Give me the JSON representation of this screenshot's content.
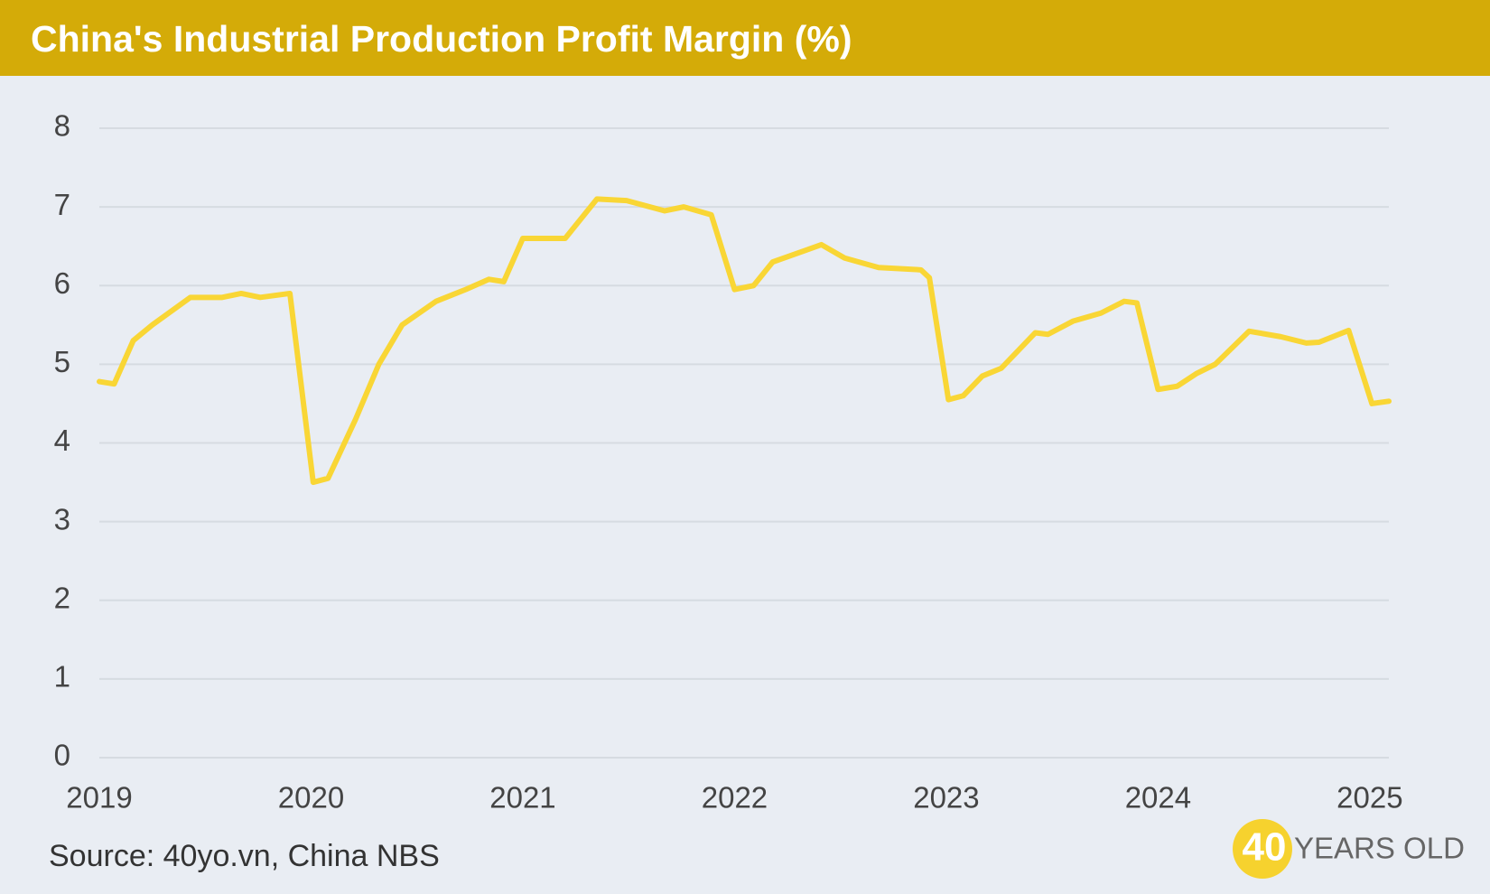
{
  "chart_data": {
    "type": "line",
    "title": "China's Industrial Production Profit Margin (%)",
    "x": [
      2019.0,
      2019.07,
      2019.16,
      2019.25,
      2019.43,
      2019.58,
      2019.67,
      2019.76,
      2019.9,
      2020.01,
      2020.08,
      2020.21,
      2020.32,
      2020.43,
      2020.59,
      2020.73,
      2020.84,
      2020.91,
      2021.0,
      2021.2,
      2021.35,
      2021.49,
      2021.67,
      2021.76,
      2021.89,
      2022.0,
      2022.09,
      2022.18,
      2022.41,
      2022.52,
      2022.68,
      2022.88,
      2022.92,
      2023.01,
      2023.08,
      2023.17,
      2023.26,
      2023.42,
      2023.48,
      2023.6,
      2023.73,
      2023.84,
      2023.9,
      2024.0,
      2024.09,
      2024.18,
      2024.27,
      2024.43,
      2024.58,
      2024.7,
      2024.76,
      2024.9,
      2025.01,
      2025.09
    ],
    "values": [
      4.78,
      4.75,
      5.3,
      5.5,
      5.85,
      5.85,
      5.9,
      5.85,
      5.9,
      3.5,
      3.55,
      4.3,
      5.0,
      5.5,
      5.8,
      5.95,
      6.08,
      6.05,
      6.6,
      6.6,
      7.1,
      7.08,
      6.95,
      7.0,
      6.9,
      5.95,
      6.0,
      6.3,
      6.52,
      6.35,
      6.23,
      6.2,
      6.1,
      4.55,
      4.6,
      4.85,
      4.95,
      5.4,
      5.38,
      5.55,
      5.65,
      5.8,
      5.78,
      4.68,
      4.72,
      4.88,
      5.0,
      5.42,
      5.35,
      5.27,
      5.28,
      5.43,
      4.5,
      4.53
    ],
    "color": "#f9d635",
    "xlim": [
      2019,
      2025.09
    ],
    "xticks": [
      2019,
      2020,
      2021,
      2022,
      2023,
      2024,
      2025
    ],
    "ylim": [
      0,
      8
    ],
    "yticks": [
      0,
      1,
      2,
      3,
      4,
      5,
      6,
      7,
      8
    ],
    "grid": true,
    "source": "Source: 40yo.vn, China NBS"
  },
  "logo": {
    "number": "40",
    "text": "YEARS OLD"
  }
}
